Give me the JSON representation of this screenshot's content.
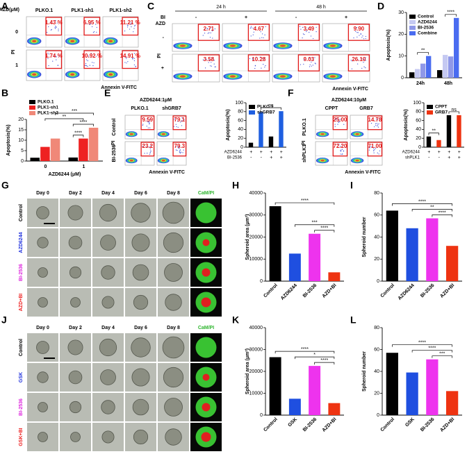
{
  "panel_letters": [
    "A",
    "B",
    "C",
    "D",
    "E",
    "F",
    "G",
    "H",
    "I",
    "J",
    "K",
    "L"
  ],
  "flow_panels": [
    {
      "row_title": "AZD(μM)",
      "col_labels": [
        "PLKO.1",
        "PLK1-sh1",
        "PLK1-sh2"
      ],
      "row_labels": [
        "0",
        "1"
      ],
      "values": [
        [
          "1.43 %",
          "6.95 %",
          "11.21 %"
        ],
        [
          "1.74 %",
          "10.92 %",
          "14.91 %"
        ]
      ],
      "x_label": "Annexin V-FITC",
      "y_label": "PI"
    },
    {
      "col_groups": [
        "24 h",
        "48 h"
      ],
      "col_title": "BI",
      "row_title": "AZD",
      "col_labels": [
        "-",
        "+",
        "-",
        "+"
      ],
      "row_labels": [
        "-",
        "+"
      ],
      "values": [
        [
          "2.71",
          "4.67",
          "3.49",
          "9.90"
        ],
        [
          "3.58",
          "10.28",
          "9.03",
          "26.10"
        ]
      ],
      "x_label": "Annexin V-FITC",
      "y_label": "PI"
    },
    {
      "title": "AZD6244:1μM",
      "col_labels": [
        "PLKO.1",
        "shGRB7"
      ],
      "row_labels": [
        "Control",
        "BI-2536"
      ],
      "rotated_row_labels": true,
      "values": [
        [
          "9.59",
          "79.1"
        ],
        [
          "23.2",
          "79.3"
        ]
      ],
      "x_label": "Annexin V-FITC",
      "y_label": "PI"
    },
    {
      "title": "AZD6244:10μM",
      "col_labels": [
        "CPPT",
        "GRB7"
      ],
      "row_labels": [
        "PLKO.1",
        "shPLK1"
      ],
      "rotated_row_labels": true,
      "values": [
        [
          "25.00",
          "14.78"
        ],
        [
          "72.20",
          "71.00"
        ]
      ],
      "x_label": "Annexin V-FITC",
      "y_label": "PI"
    }
  ],
  "spheroid_panels": [
    {
      "col_labels": [
        "Day 0",
        "Day 2",
        "Day 4",
        "Day 6",
        "Day 8",
        "CaM/PI"
      ],
      "row_labels": [
        "Control",
        "AZD6244",
        "BI-2536",
        "AZD+BI"
      ],
      "row_colors": [
        "#000000",
        "#2233dd",
        "#dd22dd",
        "#ee2222"
      ]
    },
    {
      "col_labels": [
        "Day 0",
        "Day 2",
        "Day 4",
        "Day 6",
        "Day 8",
        "CaM/PI"
      ],
      "row_labels": [
        "Control",
        "GSK",
        "BI-2536",
        "GSK+BI"
      ],
      "row_colors": [
        "#000000",
        "#2233dd",
        "#dd22dd",
        "#ee2222"
      ]
    }
  ],
  "chart_data": [
    {
      "type": "bar",
      "y_label": "Apoptosis(%)",
      "categories": [
        "24h",
        "48h"
      ],
      "legend": "top-left",
      "series": [
        {
          "name": "Control",
          "color": "#000000",
          "values": [
            2.5,
            3.5
          ]
        },
        {
          "name": "AZD6244",
          "color": "#c5c9f2",
          "values": [
            4,
            10.5
          ]
        },
        {
          "name": "BI-2536",
          "color": "#8f98e8",
          "values": [
            6.5,
            9.8
          ]
        },
        {
          "name": "Combine",
          "color": "#4a6cf0",
          "values": [
            10,
            27.5
          ]
        }
      ],
      "ylim": [
        0,
        30
      ],
      "yticks": [
        0,
        10,
        20,
        30
      ],
      "annotations": [
        {
          "text": "**",
          "between": [
            [
              0,
              "AZD6244"
            ],
            [
              0,
              "Combine"
            ]
          ]
        },
        {
          "text": "****",
          "between": [
            [
              1,
              "AZD6244"
            ],
            [
              1,
              "Combine"
            ]
          ]
        }
      ]
    },
    {
      "type": "bar",
      "y_label": "Apoptosis(%)",
      "x_label": "AZD6244 (μM)",
      "categories": [
        "0",
        "1"
      ],
      "legend": "above-left",
      "series": [
        {
          "name": "PLKO.1",
          "color": "#000000",
          "values": [
            1.6,
            1.7
          ]
        },
        {
          "name": "PLK1-sh1",
          "color": "#ee2222",
          "values": [
            6.8,
            10.8
          ]
        },
        {
          "name": "PLK1-sh2",
          "color": "#f08878",
          "values": [
            10.8,
            16
          ]
        }
      ],
      "ylim": [
        0,
        20
      ],
      "yticks": [
        0,
        5,
        10,
        15,
        20
      ],
      "annotations": [
        {
          "text": "****",
          "between": [
            [
              1,
              "PLKO.1"
            ],
            [
              1,
              "PLK1-sh1"
            ]
          ]
        },
        {
          "text": "****",
          "between": [
            [
              1,
              "PLKO.1"
            ],
            [
              1,
              "PLK1-sh2"
            ]
          ]
        },
        {
          "text": "**",
          "between": [
            [
              0,
              "PLK1-sh1"
            ],
            [
              1,
              "PLK1-sh1"
            ]
          ]
        },
        {
          "text": "***",
          "between": [
            [
              0,
              "PLK1-sh2"
            ],
            [
              1,
              "PLK1-sh2"
            ]
          ]
        }
      ]
    },
    {
      "type": "bar",
      "y_label": "Apoptosis(%)",
      "categories": [
        null,
        null,
        null,
        null
      ],
      "legend": "top-left",
      "series": [
        {
          "name": "PLKO.1",
          "color": "#000000",
          "values": [
            10,
            null,
            24,
            null
          ]
        },
        {
          "name": "shGRB7",
          "color": "#1f5fe0",
          "values": [
            null,
            79,
            null,
            81
          ]
        }
      ],
      "ylim": [
        0,
        100
      ],
      "yticks": [
        0,
        20,
        40,
        60,
        80,
        100
      ],
      "condition_rows": [
        {
          "label": "AZD6244",
          "marks": [
            "+",
            "+",
            "+",
            "+"
          ]
        },
        {
          "label": "BI-2536",
          "marks": [
            "-",
            "-",
            "+",
            "+"
          ]
        }
      ],
      "annotations": [
        {
          "text": "ns",
          "between": [
            [
              1,
              "shGRB7"
            ],
            [
              3,
              "shGRB7"
            ]
          ]
        }
      ]
    },
    {
      "type": "bar",
      "y_label": "Apoptosis(%)",
      "categories": [
        null,
        null,
        null,
        null
      ],
      "legend": "top-left",
      "series": [
        {
          "name": "CPPT",
          "color": "#000000",
          "values": [
            24,
            null,
            72,
            null
          ]
        },
        {
          "name": "GRB7",
          "color": "#ee3311",
          "values": [
            null,
            16,
            null,
            72
          ]
        }
      ],
      "ylim": [
        0,
        100
      ],
      "yticks": [
        0,
        20,
        40,
        60,
        80,
        100
      ],
      "condition_rows": [
        {
          "label": "AZD6244",
          "marks": [
            "+",
            "+",
            "+",
            "+"
          ]
        },
        {
          "label": "shPLK1",
          "marks": [
            "-",
            "-",
            "+",
            "+"
          ]
        }
      ],
      "annotations": [
        {
          "text": "**",
          "between": [
            [
              0,
              "CPPT"
            ],
            [
              1,
              "GRB7"
            ]
          ]
        },
        {
          "text": "ns",
          "between": [
            [
              2,
              "CPPT"
            ],
            [
              3,
              "GRB7"
            ]
          ]
        }
      ]
    },
    {
      "type": "bar",
      "y_label": "Spheroid area (μm²)",
      "categories": [
        "Control",
        "AZD6244",
        "BI-2536",
        "AZD+BI"
      ],
      "rotated_labels": true,
      "values": [
        34000,
        12500,
        21500,
        4000
      ],
      "colors": [
        "#000000",
        "#1f4fe0",
        "#ee33ee",
        "#ee3311"
      ],
      "ylim": [
        0,
        40000
      ],
      "yticks": [
        0,
        10000,
        20000,
        30000,
        40000
      ],
      "annotations": [
        {
          "text": "****",
          "between": [
            [
              2
            ],
            [
              3
            ]
          ]
        },
        {
          "text": "***",
          "between": [
            [
              1
            ],
            [
              3
            ]
          ]
        },
        {
          "text": "****",
          "between": [
            [
              0
            ],
            [
              3
            ]
          ]
        }
      ]
    },
    {
      "type": "bar",
      "y_label": "Spheroid number",
      "categories": [
        "Control",
        "AZD6244",
        "BI-2536",
        "AZD+BI"
      ],
      "rotated_labels": true,
      "values": [
        64,
        48,
        57,
        32
      ],
      "colors": [
        "#000000",
        "#1f4fe0",
        "#ee33ee",
        "#ee3311"
      ],
      "ylim": [
        0,
        80
      ],
      "yticks": [
        0,
        20,
        40,
        60,
        80
      ],
      "annotations": [
        {
          "text": "****",
          "between": [
            [
              2
            ],
            [
              3
            ]
          ]
        },
        {
          "text": "**",
          "between": [
            [
              1
            ],
            [
              3
            ]
          ]
        },
        {
          "text": "****",
          "between": [
            [
              0
            ],
            [
              3
            ]
          ]
        }
      ]
    },
    {
      "type": "bar",
      "y_label": "Spheroid area (μm²)",
      "categories": [
        "Control",
        "GSK",
        "BI-2536",
        "AZD+BI"
      ],
      "rotated_labels": true,
      "values": [
        26500,
        7500,
        22500,
        5500
      ],
      "colors": [
        "#000000",
        "#1f4fe0",
        "#ee33ee",
        "#ee3311"
      ],
      "ylim": [
        0,
        40000
      ],
      "yticks": [
        0,
        10000,
        20000,
        30000,
        40000
      ],
      "annotations": [
        {
          "text": "****",
          "between": [
            [
              2
            ],
            [
              3
            ]
          ]
        },
        {
          "text": "*",
          "between": [
            [
              1
            ],
            [
              3
            ]
          ]
        },
        {
          "text": "****",
          "between": [
            [
              0
            ],
            [
              3
            ]
          ]
        }
      ]
    },
    {
      "type": "bar",
      "y_label": "Spheroid number",
      "categories": [
        "Control",
        "GSK",
        "BI-2536",
        "AZD+BI"
      ],
      "rotated_labels": true,
      "values": [
        57,
        39,
        51,
        22
      ],
      "colors": [
        "#000000",
        "#1f4fe0",
        "#ee33ee",
        "#ee3311"
      ],
      "ylim": [
        0,
        80
      ],
      "yticks": [
        0,
        20,
        40,
        60,
        80
      ],
      "annotations": [
        {
          "text": "***",
          "between": [
            [
              2
            ],
            [
              3
            ]
          ]
        },
        {
          "text": "****",
          "between": [
            [
              1
            ],
            [
              3
            ]
          ]
        },
        {
          "text": "****",
          "between": [
            [
              0
            ],
            [
              3
            ]
          ]
        }
      ]
    }
  ]
}
